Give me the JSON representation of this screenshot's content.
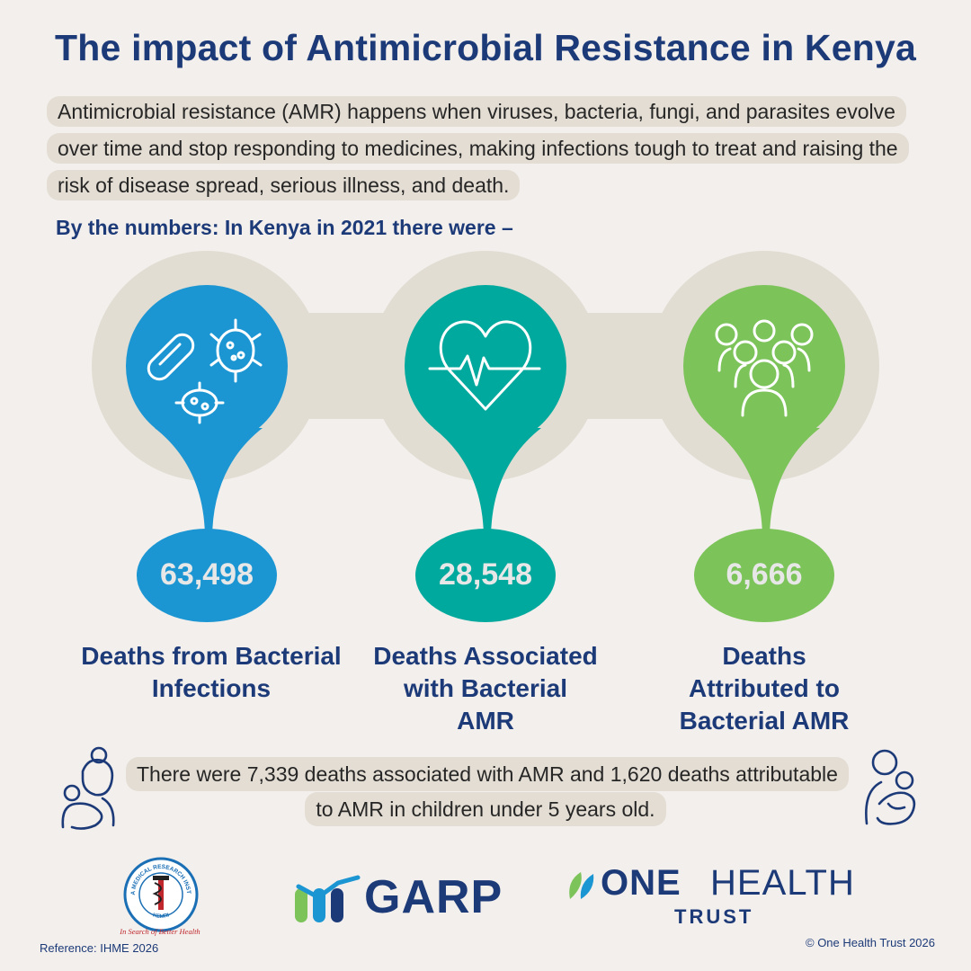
{
  "title": "The impact of Antimicrobial Resistance in Kenya",
  "intro": "Antimicrobial resistance (AMR) happens when viruses, bacteria, fungi, and parasites evolve over time and stop responding to medicines, making infections tough to treat and raising the risk of disease spread, serious illness, and death.",
  "subheading": "By the numbers: In Kenya in 2021 there were –",
  "stats": [
    {
      "value": "63,498",
      "label": "Deaths from Bacterial Infections",
      "color": "#1b96d3",
      "icon": "bacteria-icon"
    },
    {
      "value": "28,548",
      "label": "Deaths Associated with Bacterial AMR",
      "color": "#00a99d",
      "icon": "heartbeat-icon"
    },
    {
      "value": "6,666",
      "label": "Deaths Attributed to Bacterial AMR",
      "color": "#7cc35a",
      "icon": "people-group-icon"
    }
  ],
  "note": "There were 7,339 deaths associated with AMR and 1,620 deaths attributable to AMR in children under 5 years old.",
  "logos": {
    "kemri_text": "KENYA MEDICAL RESEARCH INSTITUTE",
    "kemri_acronym": "KEMRI",
    "kemri_motto": "In Search of Better Health",
    "garp": "GARP",
    "oht_one": "ONE",
    "oht_health": "HEALTH",
    "oht_trust": "TRUST"
  },
  "reference": "Reference: IHME 2026",
  "copyright": "© One Health Trust 2026",
  "colors": {
    "title": "#1d3a78",
    "highlight": "#e4ddd3",
    "band": "#e2ddd3",
    "background": "#f2efec"
  }
}
